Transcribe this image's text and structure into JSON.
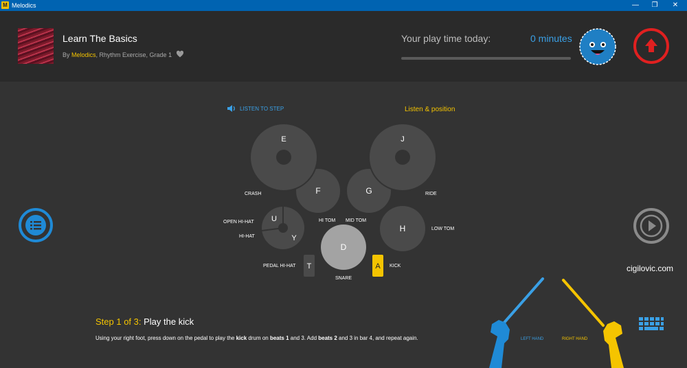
{
  "window": {
    "title": "Melodics",
    "logo_letter": "M",
    "minimize": "—",
    "restore": "❐",
    "close": "✕"
  },
  "header": {
    "song_title": "Learn The Basics",
    "by": "By ",
    "brand": "Melodics",
    "meta": ", Rhythm Exercise, Grade 1",
    "playtime_label": "Your play time today:",
    "playtime_value": "0 minutes",
    "playtime_progress": 0
  },
  "colors": {
    "accent_blue": "#3aa0e6",
    "accent_yellow": "#f5c400",
    "accent_red": "#e02020"
  },
  "main": {
    "listen_to_step": "LISTEN TO STEP",
    "listen_position": "Listen & position",
    "watermark": "cigilovic.com"
  },
  "drums": {
    "crash_key": "E",
    "ride_key": "J",
    "hitom_key": "F",
    "midtom_key": "G",
    "lowtom_key": "H",
    "openhihat_key": "U",
    "hihat_key": "Y",
    "snare_key": "D",
    "pedal_key": "T",
    "kick_key": "A",
    "crash_label": "CRASH",
    "ride_label": "RIDE",
    "hitom_label": "HI TOM",
    "midtom_label": "MID TOM",
    "lowtom_label": "LOW TOM",
    "openhihat_label": "OPEN HI-HAT",
    "hihat_label": "HI-HAT",
    "snare_label": "SNARE",
    "pedal_label": "PEDAL HI-HAT",
    "kick_label": "KICK"
  },
  "step": {
    "number": "Step 1 of 3:",
    "name": "Play the kick",
    "d1": "Using your right foot, press down on the pedal to play the ",
    "d2": "kick",
    "d3": " drum on ",
    "d4": "beats 1",
    "d5": " and 3. Add ",
    "d6": "beats 2",
    "d7": " and 3 in bar 4, and repeat again."
  },
  "hands": {
    "left": "LEFT HAND",
    "right": "RIGHT HAND"
  },
  "icons": {
    "heart": "heart-icon",
    "avatar": "smiley-avatar-icon",
    "upload": "up-arrow-icon",
    "menu": "list-icon",
    "play": "play-icon",
    "speaker": "speaker-icon",
    "keyboard": "keyboard-icon"
  }
}
